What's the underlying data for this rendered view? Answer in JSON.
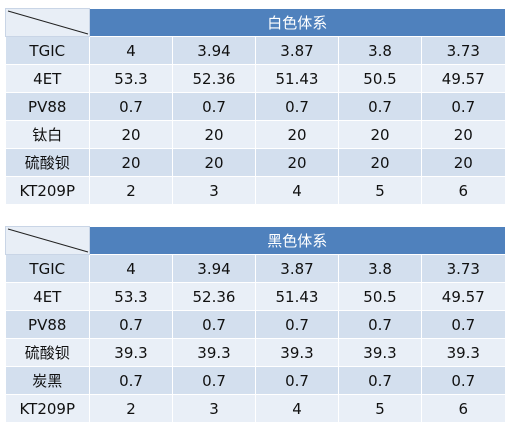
{
  "tables": [
    {
      "title": "白色体系",
      "rows": [
        {
          "label": "TGIC",
          "values": [
            "4",
            "3.94",
            "3.87",
            "3.8",
            "3.73"
          ]
        },
        {
          "label": "4ET",
          "values": [
            "53.3",
            "52.36",
            "51.43",
            "50.5",
            "49.57"
          ]
        },
        {
          "label": "PV88",
          "values": [
            "0.7",
            "0.7",
            "0.7",
            "0.7",
            "0.7"
          ]
        },
        {
          "label": "钛白",
          "values": [
            "20",
            "20",
            "20",
            "20",
            "20"
          ]
        },
        {
          "label": "硫酸钡",
          "values": [
            "20",
            "20",
            "20",
            "20",
            "20"
          ]
        },
        {
          "label": "KT209P",
          "values": [
            "2",
            "3",
            "4",
            "5",
            "6"
          ]
        }
      ]
    },
    {
      "title": "黑色体系",
      "rows": [
        {
          "label": "TGIC",
          "values": [
            "4",
            "3.94",
            "3.87",
            "3.8",
            "3.73"
          ]
        },
        {
          "label": "4ET",
          "values": [
            "53.3",
            "52.36",
            "51.43",
            "50.5",
            "49.57"
          ]
        },
        {
          "label": "PV88",
          "values": [
            "0.7",
            "0.7",
            "0.7",
            "0.7",
            "0.7"
          ]
        },
        {
          "label": "硫酸钡",
          "values": [
            "39.3",
            "39.3",
            "39.3",
            "39.3",
            "39.3"
          ]
        },
        {
          "label": "炭黑",
          "values": [
            "0.7",
            "0.7",
            "0.7",
            "0.7",
            "0.7"
          ]
        },
        {
          "label": "KT209P",
          "values": [
            "2",
            "3",
            "4",
            "5",
            "6"
          ]
        }
      ]
    }
  ],
  "colors": {
    "header": "#4f81bd",
    "band_dark": "#d3dfee",
    "band_light": "#e9eff7",
    "header_text": "#ffffff"
  }
}
